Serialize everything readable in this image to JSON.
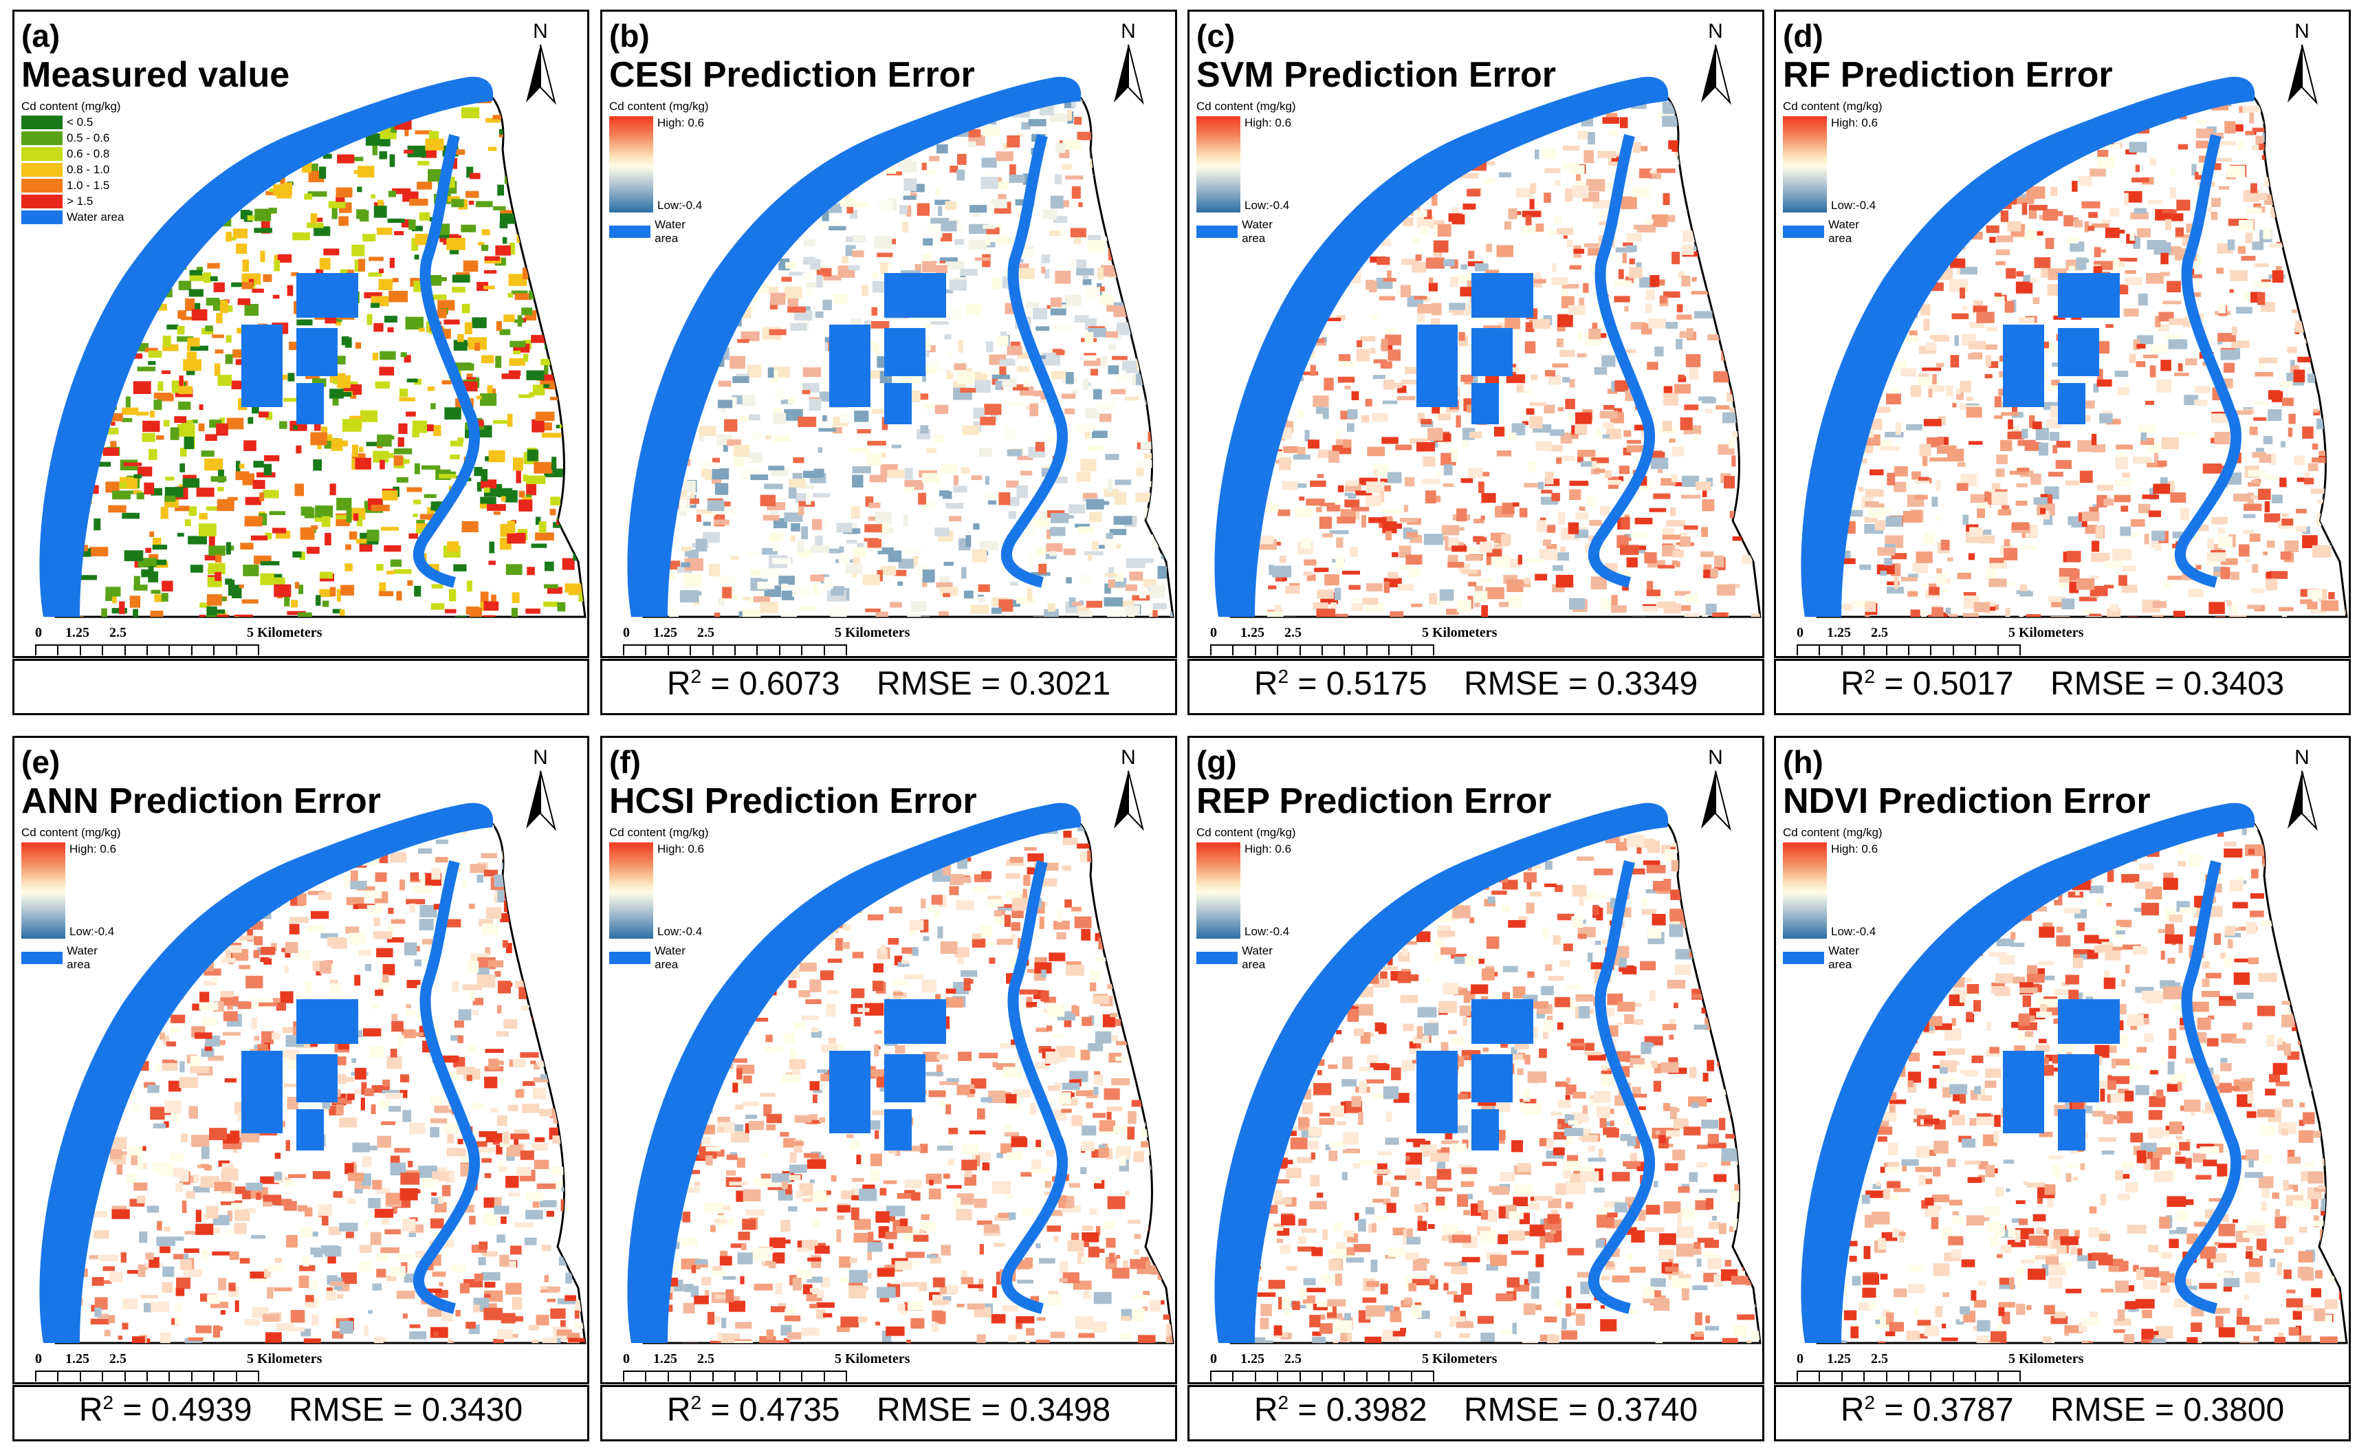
{
  "panels": [
    {
      "letter": "(a)",
      "title": "Measured value",
      "type": "measured",
      "r2": "",
      "rmse": ""
    },
    {
      "letter": "(b)",
      "title": "CESI Prediction Error",
      "type": "error",
      "r2": "R",
      "r2_sup": "2",
      "r2_value": " = 0.6073",
      "rmse": "RMSE = 0.3021",
      "tone": "cool"
    },
    {
      "letter": "(c)",
      "title": "SVM Prediction Error",
      "type": "error",
      "r2": "R",
      "r2_sup": "2",
      "r2_value": " = 0.5175",
      "rmse": "RMSE = 0.3349",
      "tone": "warm"
    },
    {
      "letter": "(d)",
      "title": "RF Prediction Error",
      "type": "error",
      "r2": "R",
      "r2_sup": "2",
      "r2_value": " = 0.5017",
      "rmse": "RMSE = 0.3403",
      "tone": "warm"
    },
    {
      "letter": "(e)",
      "title": "ANN Prediction Error",
      "type": "error",
      "r2": "R",
      "r2_sup": "2",
      "r2_value": " = 0.4939",
      "rmse": "RMSE = 0.3430",
      "tone": "warm"
    },
    {
      "letter": "(f)",
      "title": "HCSI Prediction Error",
      "type": "error",
      "r2": "R",
      "r2_sup": "2",
      "r2_value": " = 0.4735",
      "rmse": "RMSE = 0.3498",
      "tone": "warm"
    },
    {
      "letter": "(g)",
      "title": "REP Prediction Error",
      "type": "error",
      "r2": "R",
      "r2_sup": "2",
      "r2_value": " = 0.3982",
      "rmse": "RMSE = 0.3740",
      "tone": "warm"
    },
    {
      "letter": "(h)",
      "title": "NDVI Prediction Error",
      "type": "error",
      "r2": "R",
      "r2_sup": "2",
      "r2_value": " = 0.3787",
      "rmse": "RMSE = 0.3800",
      "tone": "warm"
    }
  ],
  "legend": {
    "title": "Cd content (mg/kg)",
    "classes": [
      {
        "label": "< 0.5",
        "color": "#1a7a1a"
      },
      {
        "label": "0.5 - 0.6",
        "color": "#5aa317"
      },
      {
        "label": "0.6 - 0.8",
        "color": "#c7dc19"
      },
      {
        "label": "0.8 - 1.0",
        "color": "#f5c21a"
      },
      {
        "label": "1.0 - 1.5",
        "color": "#f07a1a"
      },
      {
        "label": "> 1.5",
        "color": "#e8261a"
      }
    ],
    "high": "High: 0.6",
    "low": "Low:-0.4",
    "water": "Water area",
    "water_color": "#1976e8"
  },
  "north_label": "N",
  "scale": {
    "labels": [
      "0",
      "1.25",
      "2.5",
      "5 Kilometers"
    ]
  }
}
